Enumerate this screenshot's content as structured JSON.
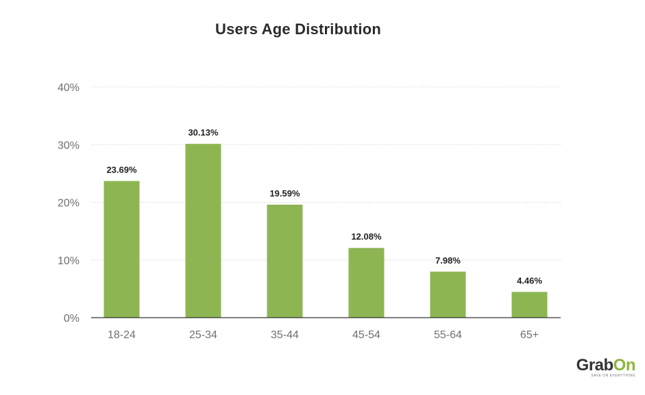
{
  "brand": {
    "name_main": "Grab",
    "name_accent": "On",
    "tagline": "SAVE ON EVERYTHING"
  },
  "colors": {
    "bar": "#8db653",
    "accent": "#8db63f"
  },
  "chart_data": {
    "type": "bar",
    "title": "Users Age Distribution",
    "xlabel": "",
    "ylabel": "",
    "categories": [
      "18-24",
      "25-34",
      "35-44",
      "45-54",
      "55-64",
      "65+"
    ],
    "values": [
      23.69,
      30.13,
      19.59,
      12.08,
      7.98,
      4.46
    ],
    "data_labels": [
      "23.69%",
      "30.13%",
      "19.59%",
      "12.08%",
      "7.98%",
      "4.46%"
    ],
    "ylim": [
      0,
      40
    ],
    "yticks": [
      0,
      10,
      20,
      30,
      40
    ],
    "ytick_labels": [
      "0%",
      "10%",
      "20%",
      "30%",
      "40%"
    ],
    "grid": true,
    "legend": "none"
  }
}
